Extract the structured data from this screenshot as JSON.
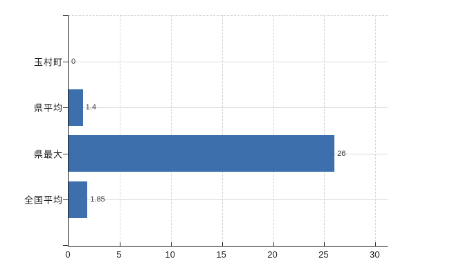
{
  "chart_data": {
    "type": "bar",
    "orientation": "horizontal",
    "title": "",
    "xlabel": "",
    "ylabel": "",
    "categories": [
      "玉村町",
      "県平均",
      "県最大",
      "全国平均"
    ],
    "values": [
      0,
      1.4,
      26,
      1.85
    ],
    "value_labels": [
      "0",
      "1.4",
      "26",
      "1.85"
    ],
    "x_ticks": [
      0,
      5,
      10,
      15,
      20,
      25,
      30
    ],
    "x_tick_labels": [
      "0",
      "5",
      "10",
      "15",
      "20",
      "25",
      "30"
    ],
    "xlim": [
      0,
      31.2
    ],
    "grid": true,
    "legend": false,
    "series_name": ""
  },
  "colors": {
    "bar": "#3c6fac",
    "vertical_gridline": "#d4d1d8",
    "horizontal_gridline": "#d9dcd7",
    "axis": "#1a1a1a",
    "category_text": "#1a1a1a",
    "value_text": "#3c3c3c",
    "background": "#ffffff"
  }
}
